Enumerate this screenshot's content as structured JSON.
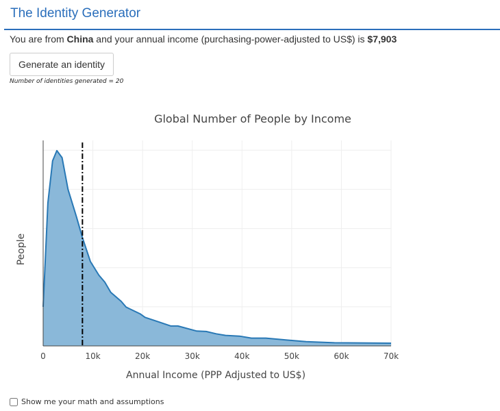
{
  "header": {
    "title": "The Identity Generator"
  },
  "result": {
    "prefix": "You are from ",
    "country": "China",
    "middle": " and your annual income (purchasing-power-adjusted to US$) is ",
    "income": "$7,903"
  },
  "generate_button": {
    "label": "Generate an identity"
  },
  "counter": {
    "text": "Number of identities generated = 20"
  },
  "math_checkbox": {
    "label": "Show me your math and assumptions",
    "checked": false
  },
  "colors": {
    "accent": "#2a6ebb",
    "area_fill": "#8ab8d9",
    "area_line": "#2878b5",
    "marker_line": "#000000"
  },
  "chart_data": {
    "type": "area",
    "title": "Global Number of People by Income",
    "xlabel": "Annual Income (PPP Adjusted to US$)",
    "ylabel": "People",
    "xlim": [
      0,
      70000
    ],
    "ylim": [
      0,
      5.25
    ],
    "y_units": "relative (no tick labels shown)",
    "grid": true,
    "x_ticks": [
      {
        "value": 0,
        "label": "0"
      },
      {
        "value": 10000,
        "label": "10k"
      },
      {
        "value": 20000,
        "label": "20k"
      },
      {
        "value": 30000,
        "label": "30k"
      },
      {
        "value": 40000,
        "label": "40k"
      },
      {
        "value": 50000,
        "label": "50k"
      },
      {
        "value": 60000,
        "label": "60k"
      },
      {
        "value": 70000,
        "label": "70k"
      }
    ],
    "y_gridlines": [
      1,
      2,
      3,
      4,
      5
    ],
    "x": [
      0,
      950,
      1900,
      2760,
      3800,
      5000,
      6700,
      7900,
      9500,
      11200,
      12400,
      13600,
      15700,
      16700,
      19500,
      20500,
      23300,
      25700,
      27100,
      30900,
      32800,
      34800,
      36700,
      39500,
      41900,
      44800,
      49000,
      52900,
      58600,
      70000
    ],
    "y": [
      1.0,
      3.65,
      4.73,
      4.99,
      4.81,
      4.0,
      3.3,
      2.77,
      2.16,
      1.81,
      1.63,
      1.37,
      1.14,
      0.99,
      0.82,
      0.73,
      0.61,
      0.51,
      0.51,
      0.38,
      0.37,
      0.31,
      0.27,
      0.25,
      0.2,
      0.2,
      0.15,
      0.11,
      0.08,
      0.07
    ],
    "marker": {
      "value": 7903,
      "style": "dash-dot"
    }
  }
}
